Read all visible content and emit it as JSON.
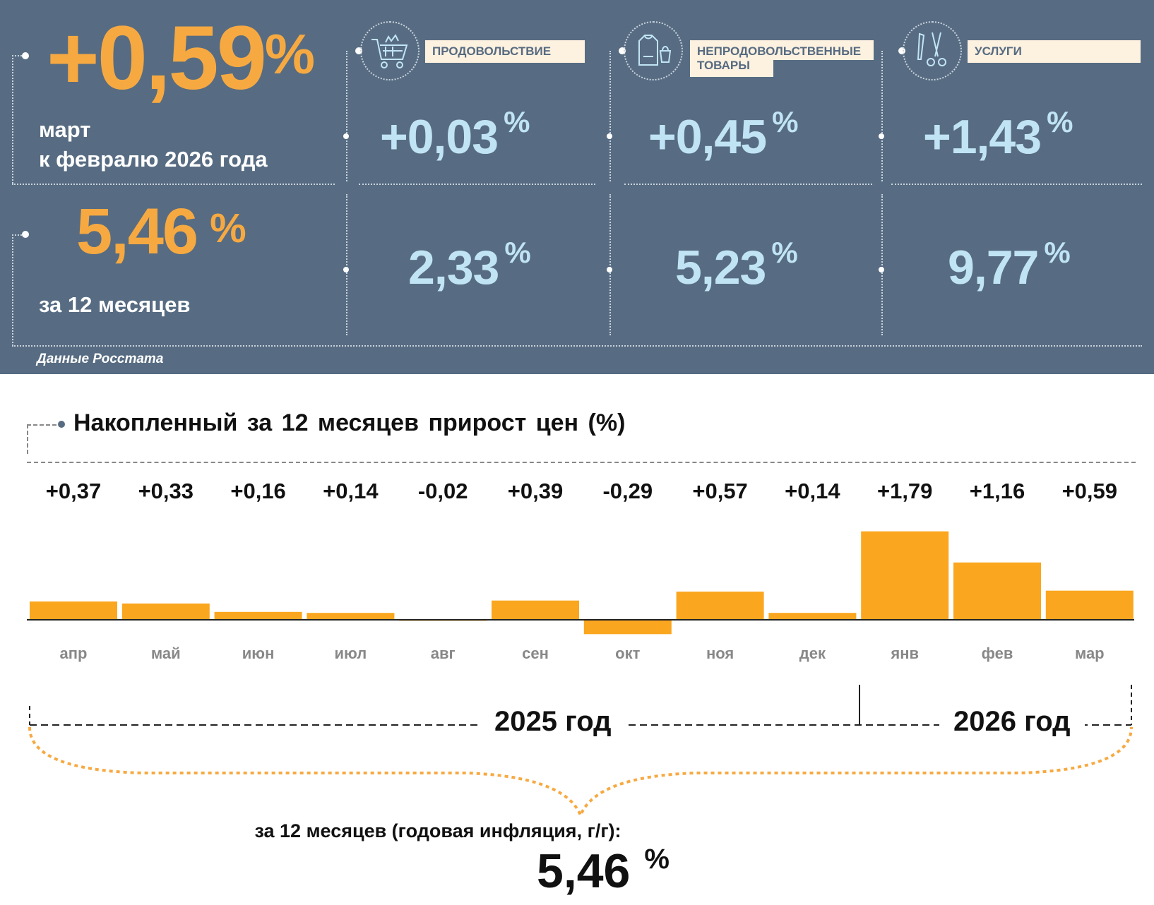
{
  "headline": {
    "monthly_value": "+0,59",
    "percent": "%",
    "monthly_caption_line1": "март",
    "monthly_caption_line2": "к февралю 2026 года",
    "annual_value": "5,46",
    "annual_caption": "за 12 месяцев",
    "source": "Данные Росстата"
  },
  "categories": [
    {
      "label": "ПРОДОВОЛЬСТВИЕ",
      "icon": "shopping-cart-icon",
      "monthly": "+0,03",
      "annual": "2,33"
    },
    {
      "label_line1": "НЕПРОДОВОЛЬСТВЕННЫЕ",
      "label_line2": "ТОВАРЫ",
      "icon": "clothing-bag-icon",
      "monthly": "+0,45",
      "annual": "5,23"
    },
    {
      "label": "УСЛУГИ",
      "icon": "comb-scissors-icon",
      "monthly": "+1,43",
      "annual": "9,77"
    }
  ],
  "colors": {
    "panel": "#576c82",
    "accent": "#f7a941",
    "value": "#c1e4f4",
    "bar": "#fba61f"
  },
  "chart_data": {
    "type": "bar",
    "title": "Накопленный за 12 месяцев прирост цен (%)",
    "categories": [
      "апр",
      "май",
      "июн",
      "июл",
      "авг",
      "сен",
      "окт",
      "ноя",
      "дек",
      "янв",
      "фев",
      "мар"
    ],
    "values": [
      0.37,
      0.33,
      0.16,
      0.14,
      -0.02,
      0.39,
      -0.29,
      0.57,
      0.14,
      1.79,
      1.16,
      0.59
    ],
    "value_labels": [
      "+0,37",
      "+0,33",
      "+0,16",
      "+0,14",
      "-0,02",
      "+0,39",
      "-0,29",
      "+0,57",
      "+0,14",
      "+1,79",
      "+1,16",
      "+0,59"
    ],
    "year_labels": [
      "2025 год",
      "2026 год"
    ],
    "footer_caption": "за 12 месяцев (годовая инфляция, г/г):",
    "footer_value": "5,46",
    "footer_percent": "%"
  }
}
